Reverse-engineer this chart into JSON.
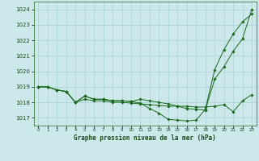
{
  "xlabel": "Graphe pression niveau de la mer (hPa)",
  "xlim": [
    -0.5,
    23.5
  ],
  "ylim": [
    1016.5,
    1024.5
  ],
  "yticks": [
    1017,
    1018,
    1019,
    1020,
    1021,
    1022,
    1023,
    1024
  ],
  "xtick_labels": [
    "0",
    "1",
    "2",
    "3",
    "4",
    "5",
    "6",
    "7",
    "8",
    "9",
    "10",
    "11",
    "12",
    "13",
    "14",
    "15",
    "16",
    "17",
    "18",
    "19",
    "20",
    "21",
    "22",
    "23"
  ],
  "bg_color": "#cce8ea",
  "grid_color": "#a8d4d6",
  "line_color": "#1a6b1a",
  "marker": "D",
  "marker_size": 1.8,
  "line_width": 0.7,
  "lines": [
    [
      1019.0,
      1019.0,
      1018.8,
      1018.7,
      1018.0,
      1018.2,
      1018.1,
      1018.1,
      1018.0,
      1018.0,
      1017.95,
      1017.9,
      1017.85,
      1017.8,
      1017.75,
      1017.75,
      1017.75,
      1017.7,
      1017.7,
      1017.75,
      1017.85,
      1017.4,
      1018.1,
      1018.5
    ],
    [
      1019.0,
      1019.0,
      1018.8,
      1018.7,
      1018.0,
      1018.4,
      1018.2,
      1018.2,
      1018.1,
      1018.1,
      1018.05,
      1017.95,
      1017.6,
      1017.3,
      1016.9,
      1016.85,
      1016.8,
      1016.85,
      1017.55,
      1020.1,
      1021.4,
      1022.4,
      1023.2,
      1023.7
    ],
    [
      1019.0,
      1019.0,
      1018.8,
      1018.7,
      1018.0,
      1018.4,
      1018.2,
      1018.2,
      1018.1,
      1018.1,
      1018.05,
      1018.2,
      1018.1,
      1018.0,
      1017.9,
      1017.75,
      1017.6,
      1017.55,
      1017.5,
      1019.5,
      1020.3,
      1021.3,
      1022.1,
      1024.0
    ]
  ]
}
